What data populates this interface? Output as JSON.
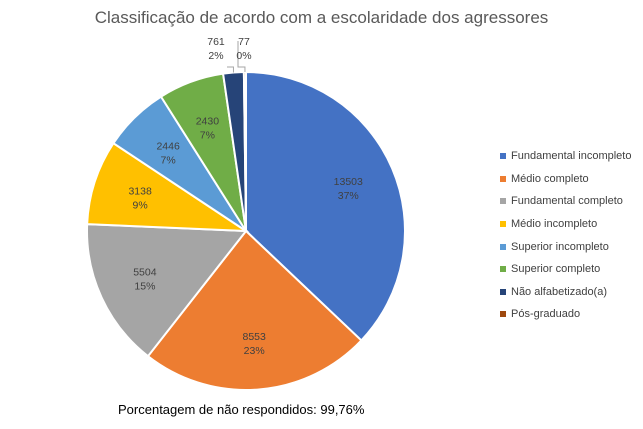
{
  "chart_data": {
    "type": "pie",
    "title": "Classificação de acordo com a escolaridade dos agressores",
    "footnote": "Porcentagem de não respondidos: 99,76%",
    "legend_position": "right",
    "slices": [
      {
        "name": "Fundamental incompleto",
        "value": 13503,
        "value_label": "13503",
        "percent_label": "37%",
        "color": "#4472C4"
      },
      {
        "name": "Médio completo",
        "value": 8553,
        "value_label": "8553",
        "percent_label": "23%",
        "color": "#ED7D31"
      },
      {
        "name": "Fundamental completo",
        "value": 5504,
        "value_label": "5504",
        "percent_label": "15%",
        "color": "#A5A5A5"
      },
      {
        "name": "Médio incompleto",
        "value": 3138,
        "value_label": "3138",
        "percent_label": "9%",
        "color": "#FFC000"
      },
      {
        "name": "Superior incompleto",
        "value": 2446,
        "value_label": "2446",
        "percent_label": "7%",
        "color": "#5B9BD5"
      },
      {
        "name": "Superior completo",
        "value": 2430,
        "value_label": "2430",
        "percent_label": "7%",
        "color": "#70AD47"
      },
      {
        "name": "Não alfabetizado(a)",
        "value": 761,
        "value_label": "761",
        "percent_label": "2%",
        "color": "#264478"
      },
      {
        "name": "Pós-graduado",
        "value": 77,
        "value_label": "77",
        "percent_label": "0%",
        "color": "#9E480E"
      }
    ]
  }
}
